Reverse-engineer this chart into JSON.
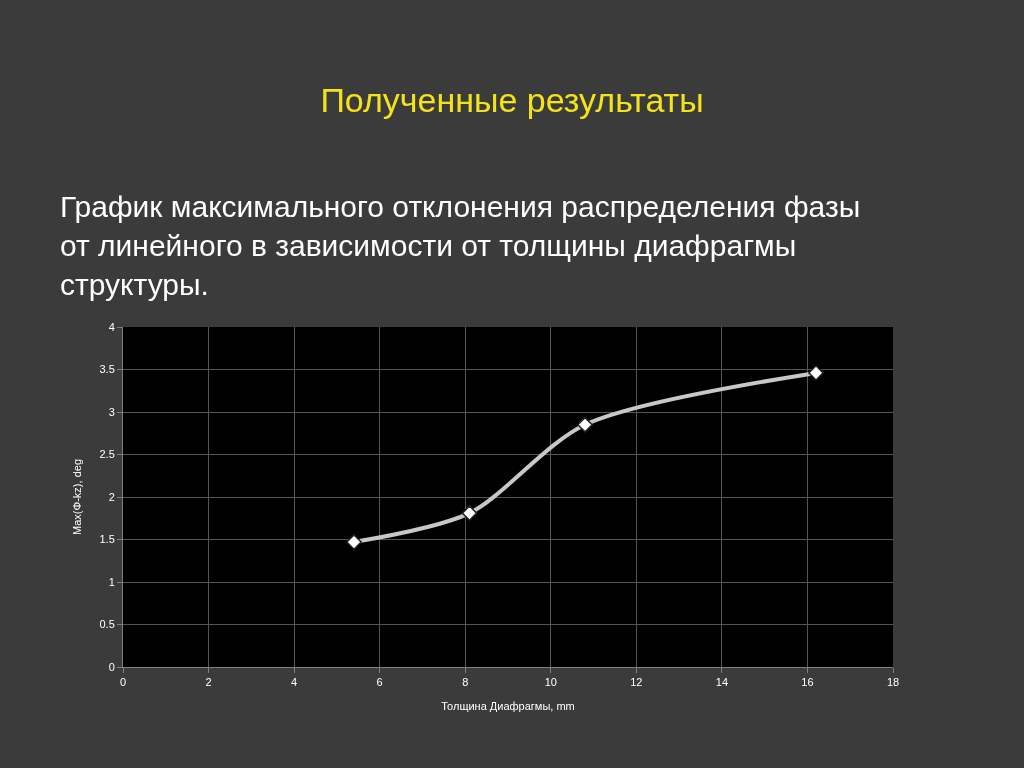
{
  "chart_data": {
    "type": "line",
    "title": "Полученные результаты",
    "subtitle": "График максимального отклонения распределения фазы\nот линейного в зависимости от толщины диафрагмы\nструктуры.",
    "xlabel": "Толщина Диафрагмы, mm",
    "ylabel": "Max(Φ-kz), deg",
    "x": [
      5.4,
      8.1,
      10.8,
      16.2
    ],
    "series": [
      {
        "color": "#c8c8c8",
        "values": [
          1.47,
          1.81,
          2.85,
          3.46
        ]
      }
    ],
    "xlim": [
      0,
      18
    ],
    "xticks": [
      0,
      2,
      4,
      6,
      8,
      10,
      12,
      14,
      16,
      18
    ],
    "ylim": [
      0,
      4
    ],
    "yticks": [
      0,
      0.5,
      1,
      1.5,
      2,
      2.5,
      3,
      3.5,
      4
    ],
    "grid": true,
    "marker": "diamond",
    "line_style": "solid"
  }
}
